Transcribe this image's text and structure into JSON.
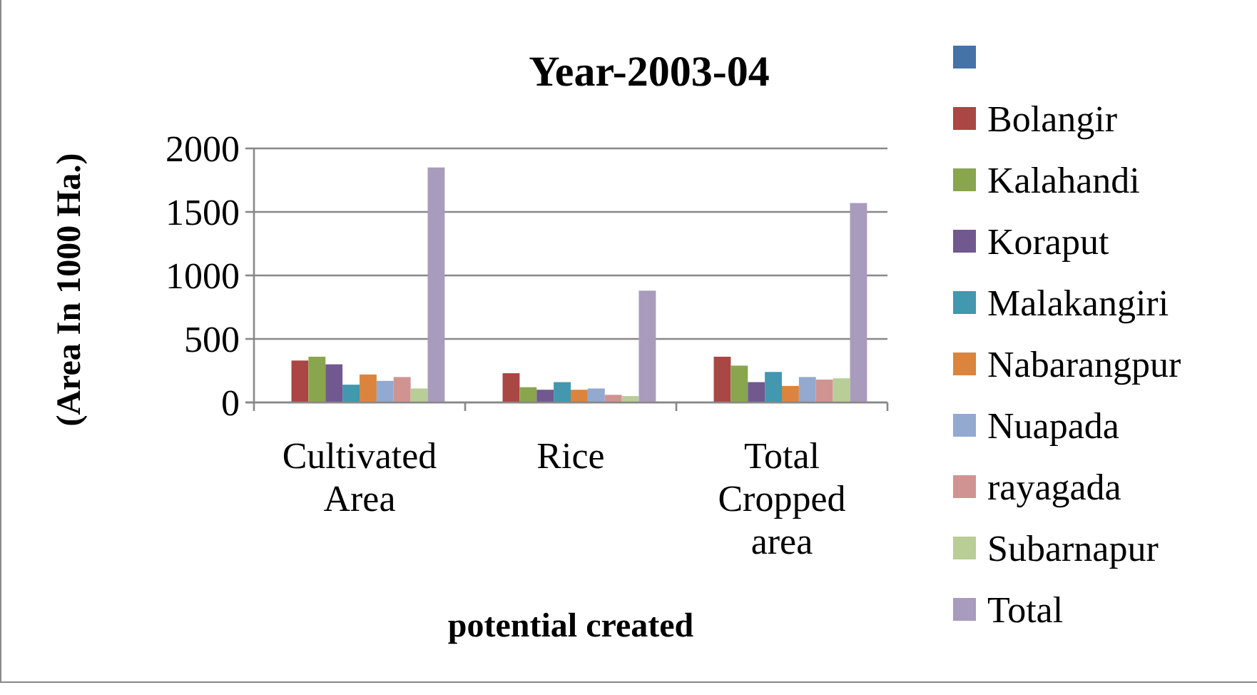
{
  "chart_data": {
    "type": "bar",
    "title": "Year-2003-04",
    "xlabel": "potential created",
    "ylabel": "(Area In 1000 Ha.)",
    "categories": [
      "Cultivated Area",
      "Rice",
      "Total Cropped area"
    ],
    "series": [
      {
        "color": "#4572a7",
        "values": [
          null,
          null,
          null
        ]
      },
      {
        "name": "Bolangir",
        "color": "#aa4643",
        "values": [
          330,
          230,
          360
        ]
      },
      {
        "name": "Kalahandi",
        "color": "#89a54e",
        "values": [
          360,
          120,
          290
        ]
      },
      {
        "name": "Koraput",
        "color": "#71588f",
        "values": [
          300,
          100,
          160
        ]
      },
      {
        "name": "Malakangiri",
        "color": "#4198af",
        "values": [
          140,
          160,
          240
        ]
      },
      {
        "name": "Nabarangpur",
        "color": "#db843d",
        "values": [
          220,
          100,
          130
        ]
      },
      {
        "name": "Nuapada",
        "color": "#93a9cf",
        "values": [
          170,
          110,
          200
        ]
      },
      {
        "name": "rayagada",
        "color": "#d19392",
        "values": [
          200,
          60,
          180
        ]
      },
      {
        "name": "Subarnapur",
        "color": "#b9cd96",
        "values": [
          110,
          50,
          190
        ]
      },
      {
        "name": "Total",
        "color": "#a99bbd",
        "values": [
          1850,
          880,
          1570
        ]
      }
    ],
    "ylim": [
      0,
      2000
    ],
    "yticks": [
      0,
      500,
      1000,
      1500,
      2000
    ],
    "grid": "y",
    "legend": "right"
  }
}
